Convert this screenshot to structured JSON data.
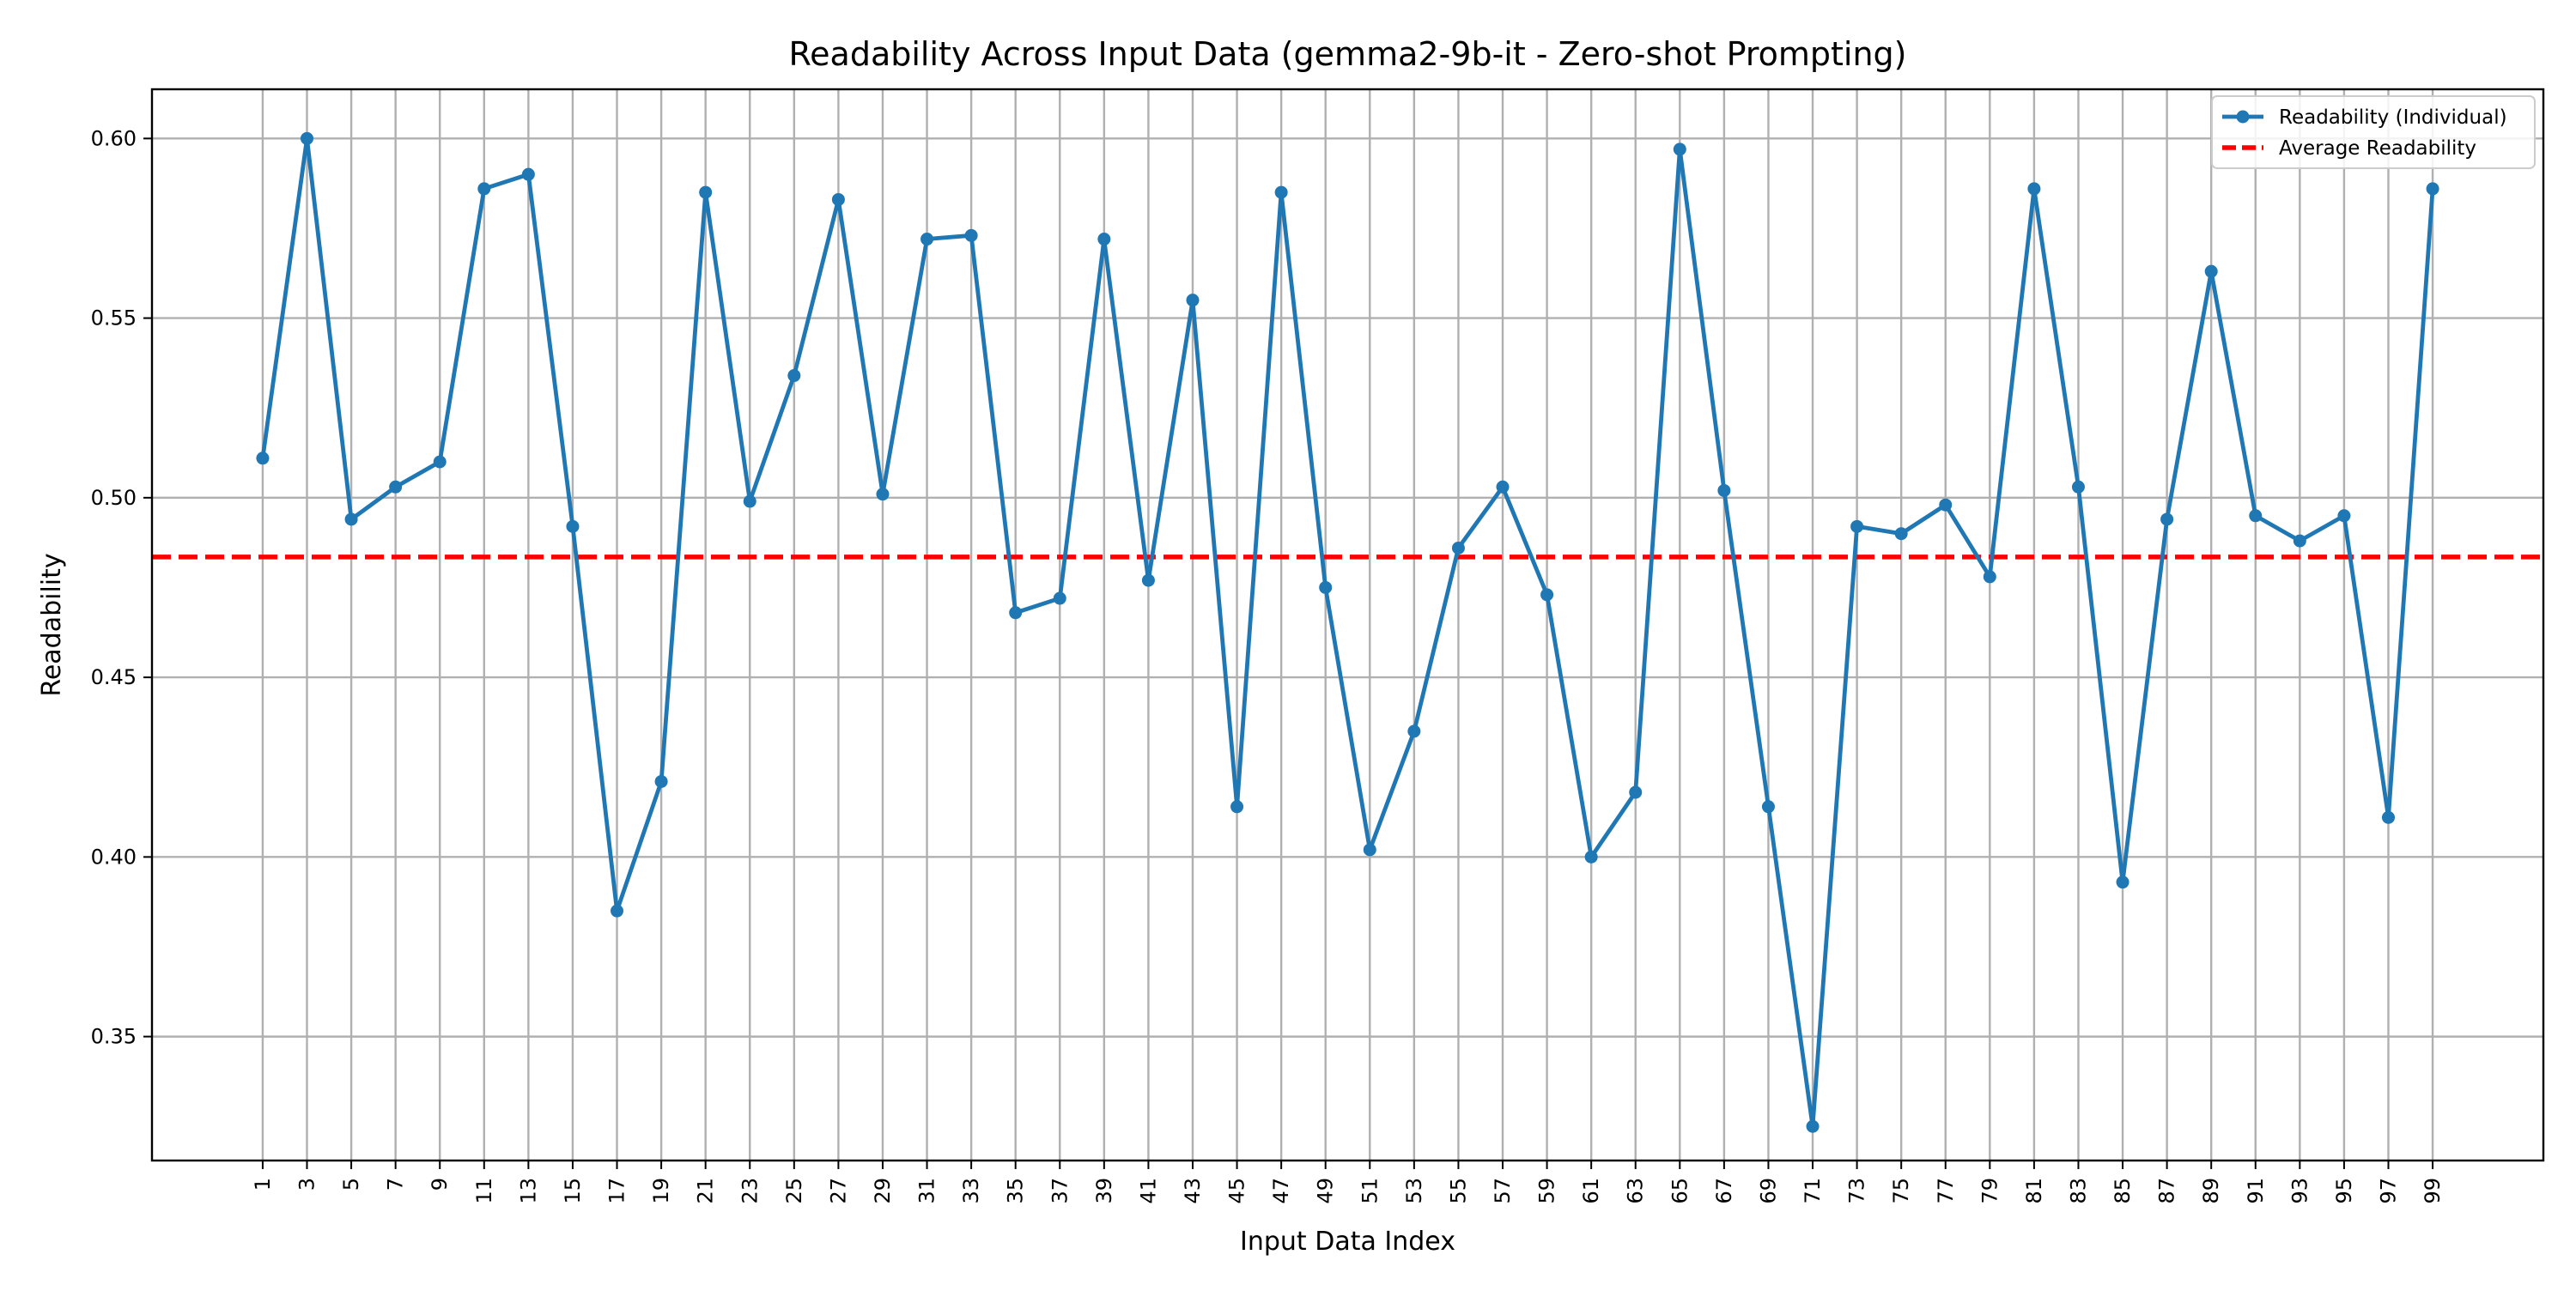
{
  "chart_data": {
    "type": "line",
    "title": "Readability Across Input Data (gemma2-9b-it - Zero-shot Prompting)",
    "xlabel": "Input Data Index",
    "ylabel": "Readability",
    "x": [
      1,
      3,
      5,
      7,
      9,
      11,
      13,
      15,
      17,
      19,
      21,
      23,
      25,
      27,
      29,
      31,
      33,
      35,
      37,
      39,
      41,
      43,
      45,
      47,
      49,
      51,
      53,
      55,
      57,
      59,
      61,
      63,
      65,
      67,
      69,
      71,
      73,
      75,
      77,
      79,
      81,
      83,
      85,
      87,
      89,
      91,
      93,
      95,
      97,
      99
    ],
    "series": [
      {
        "name": "Readability (Individual)",
        "color": "#1f77b4",
        "values": [
          0.511,
          0.6,
          0.494,
          0.503,
          0.51,
          0.586,
          0.59,
          0.492,
          0.385,
          0.421,
          0.585,
          0.499,
          0.534,
          0.583,
          0.501,
          0.572,
          0.573,
          0.468,
          0.472,
          0.572,
          0.477,
          0.555,
          0.414,
          0.585,
          0.475,
          0.402,
          0.435,
          0.486,
          0.503,
          0.473,
          0.4,
          0.418,
          0.597,
          0.502,
          0.414,
          0.325,
          0.492,
          0.49,
          0.498,
          0.478,
          0.586,
          0.503,
          0.393,
          0.494,
          0.563,
          0.495,
          0.488,
          0.495,
          0.411,
          0.586
        ]
      }
    ],
    "average": {
      "name": "Average Readability",
      "value": 0.4835,
      "color": "#ff0000"
    },
    "ylim": [
      0.3155,
      0.6137
    ],
    "xlim": [
      -4.0,
      104.0
    ],
    "yticks": [
      0.35,
      0.4,
      0.45,
      0.5,
      0.55,
      0.6
    ],
    "ytick_labels": [
      "0.35",
      "0.40",
      "0.45",
      "0.50",
      "0.55",
      "0.60"
    ],
    "xtick_labels": [
      "1",
      "3",
      "5",
      "7",
      "9",
      "11",
      "13",
      "15",
      "17",
      "19",
      "21",
      "23",
      "25",
      "27",
      "29",
      "31",
      "33",
      "35",
      "37",
      "39",
      "41",
      "43",
      "45",
      "47",
      "49",
      "51",
      "53",
      "55",
      "57",
      "59",
      "61",
      "63",
      "65",
      "67",
      "69",
      "71",
      "73",
      "75",
      "77",
      "79",
      "81",
      "83",
      "85",
      "87",
      "89",
      "91",
      "93",
      "95",
      "97",
      "99"
    ],
    "grid": true,
    "legend_position": "top-right"
  }
}
